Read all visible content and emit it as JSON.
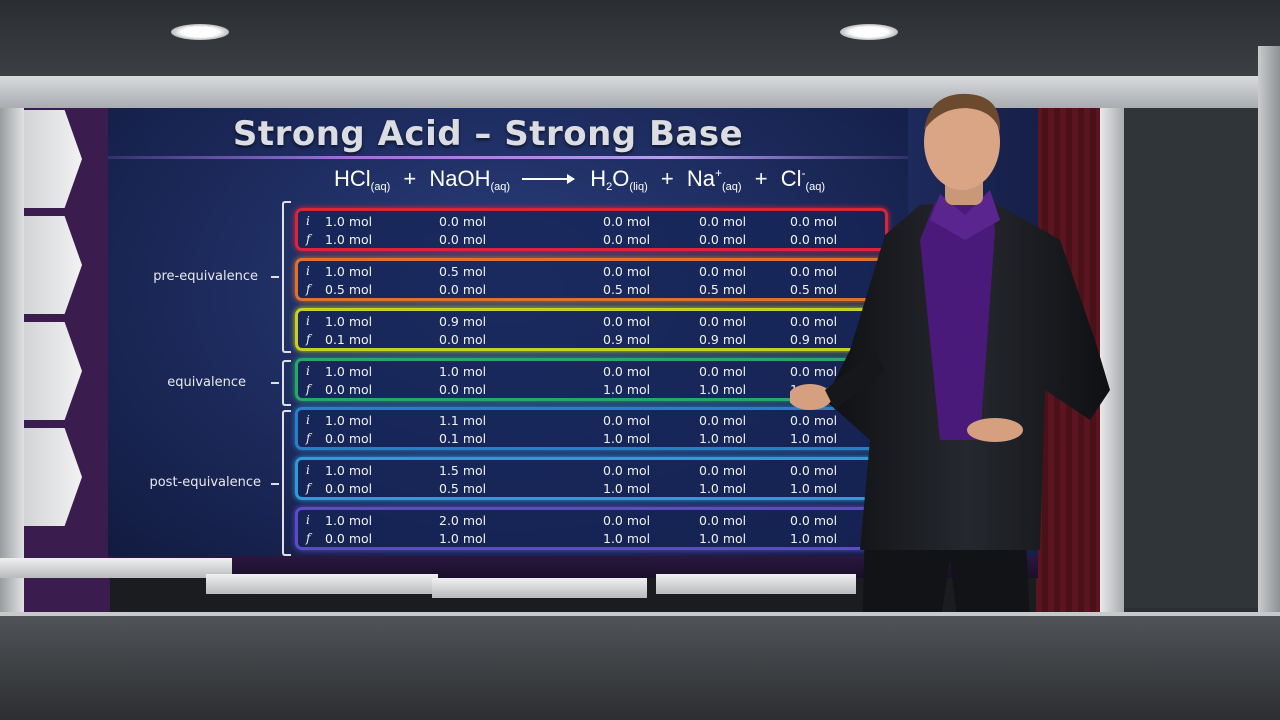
{
  "slide": {
    "title": "Strong Acid – Strong Base",
    "equation": {
      "reactant1": "HCl",
      "reactant1_state": "(aq)",
      "reactant2": "NaOH",
      "reactant2_state": "(aq)",
      "product1a": "H",
      "product1_sub": "2",
      "product1b": "O",
      "product1_state": "(liq)",
      "product2": "Na",
      "product2_charge": "+",
      "product2_state": "(aq)",
      "product3": "Cl",
      "product3_charge": "-",
      "product3_state": "(aq)",
      "plus": "+"
    },
    "phases": [
      {
        "label": "pre-equivalence"
      },
      {
        "label": "equivalence"
      },
      {
        "label": "post-equivalence"
      }
    ],
    "rows": [
      {
        "border": "#d9243a",
        "i": [
          "1.0 mol",
          "0.0 mol",
          "0.0 mol",
          "0.0 mol",
          "0.0 mol"
        ],
        "f": [
          "1.0 mol",
          "0.0 mol",
          "0.0 mol",
          "0.0 mol",
          "0.0 mol"
        ]
      },
      {
        "border": "#e2702c",
        "i": [
          "1.0 mol",
          "0.5 mol",
          "0.0 mol",
          "0.0 mol",
          "0.0 mol"
        ],
        "f": [
          "0.5 mol",
          "0.0 mol",
          "0.5 mol",
          "0.5 mol",
          "0.5 mol"
        ]
      },
      {
        "border": "#c9cf1f",
        "i": [
          "1.0 mol",
          "0.9 mol",
          "0.0 mol",
          "0.0 mol",
          "0.0 mol"
        ],
        "f": [
          "0.1 mol",
          "0.0 mol",
          "0.9 mol",
          "0.9 mol",
          "0.9 mol"
        ]
      },
      {
        "border": "#27a86a",
        "i": [
          "1.0 mol",
          "1.0 mol",
          "0.0 mol",
          "0.0 mol",
          "0.0 mol"
        ],
        "f": [
          "0.0 mol",
          "0.0 mol",
          "1.0 mol",
          "1.0 mol",
          "1.0 mol"
        ]
      },
      {
        "border": "#2a7fc4",
        "i": [
          "1.0 mol",
          "1.1 mol",
          "0.0 mol",
          "0.0 mol",
          "0.0 mol"
        ],
        "f": [
          "0.0 mol",
          "0.1 mol",
          "1.0 mol",
          "1.0 mol",
          "1.0 mol"
        ]
      },
      {
        "border": "#2e9ad6",
        "i": [
          "1.0 mol",
          "1.5 mol",
          "0.0 mol",
          "0.0 mol",
          "0.0 mol"
        ],
        "f": [
          "0.0 mol",
          "0.5 mol",
          "1.0 mol",
          "1.0 mol",
          "1.0 mol"
        ]
      },
      {
        "border": "#5a4cc8",
        "i": [
          "1.0 mol",
          "2.0 mol",
          "0.0 mol",
          "0.0 mol",
          "0.0 mol"
        ],
        "f": [
          "0.0 mol",
          "1.0 mol",
          "1.0 mol",
          "1.0 mol",
          "1.0 mol"
        ]
      }
    ],
    "row_labels": {
      "initial": "i",
      "final": "f"
    }
  },
  "presenter": {
    "shirt_color": "#4a1a7a",
    "jacket_color": "#15171b"
  }
}
